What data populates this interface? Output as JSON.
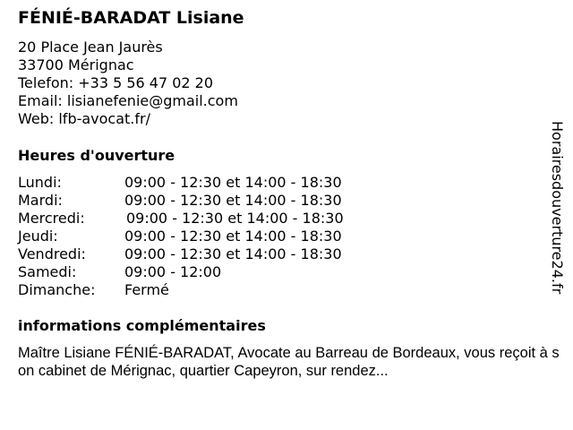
{
  "title": "FÉNIÉ-BARADAT Lisiane",
  "contact": {
    "address1": "20 Place Jean Jaurès",
    "address2": "33700 Mérignac",
    "phone": "Telefon: +33 5 56 47 02 20",
    "email": "Email: lisianefenie@gmail.com",
    "web": "Web: lfb-avocat.fr/"
  },
  "hours_heading": "Heures d'ouverture",
  "hours": [
    {
      "day": "Lundi:",
      "time": "09:00 - 12:30 et 14:00 - 18:30"
    },
    {
      "day": "Mardi:",
      "time": "09:00 - 12:30 et 14:00 - 18:30"
    },
    {
      "day": "Mercredi:",
      "time": "09:00 - 12:30 et 14:00 - 18:30"
    },
    {
      "day": "Jeudi:",
      "time": "09:00 - 12:30 et 14:00 - 18:30"
    },
    {
      "day": "Vendredi:",
      "time": "09:00 - 12:30 et 14:00 - 18:30"
    },
    {
      "day": "Samedi:",
      "time": "09:00 - 12:00"
    },
    {
      "day": "Dimanche:",
      "time": "Fermé"
    }
  ],
  "info_heading": "informations complémentaires",
  "info_text": "Maître Lisiane FÉNIÉ-BARADAT, Avocate au Barreau de Bordeaux, vous reçoit à son cabinet de Mérignac, quartier Capeyron, sur rendez...",
  "side_brand": "Horairesdouverture24.fr"
}
